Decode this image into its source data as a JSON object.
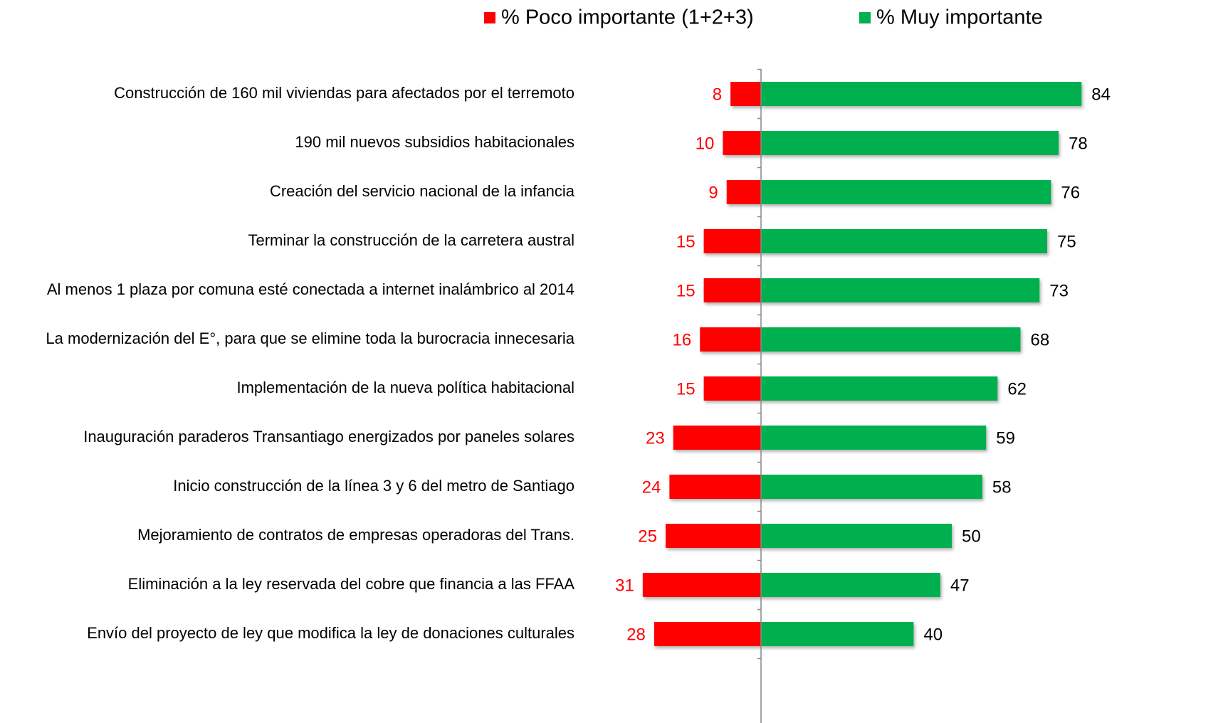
{
  "chart_data": {
    "type": "diverging-bar",
    "categories": [
      "Construcción de 160 mil viviendas para afectados por el terremoto",
      "190 mil nuevos subsidios habitacionales",
      "Creación del servicio nacional de la infancia",
      "Terminar la construcción de la carretera austral",
      "Al menos 1 plaza por comuna esté conectada a  internet inalámbrico al 2014",
      "La modernización del E°, para que se elimine toda la burocracia innecesaria",
      "Implementación de la nueva política habitacional",
      "Inauguración paraderos Transantiago energizados por paneles solares",
      "Inicio construcción de la línea 3 y 6 del metro de Santiago",
      "Mejoramiento de contratos de empresas operadoras del Trans.",
      "Eliminación a la ley reservada del cobre que financia a las FFAA",
      "Envío del proyecto de ley que modifica la ley de donaciones culturales"
    ],
    "series": [
      {
        "name": "% Poco importante (1+2+3)",
        "color": "#ff0000",
        "direction": "left",
        "values": [
          8,
          10,
          9,
          15,
          15,
          16,
          15,
          23,
          24,
          25,
          31,
          28
        ]
      },
      {
        "name": "% Muy importante",
        "color": "#00b050",
        "direction": "right",
        "values": [
          84,
          78,
          76,
          75,
          73,
          68,
          62,
          59,
          58,
          50,
          47,
          40
        ]
      }
    ],
    "legend": "top"
  }
}
